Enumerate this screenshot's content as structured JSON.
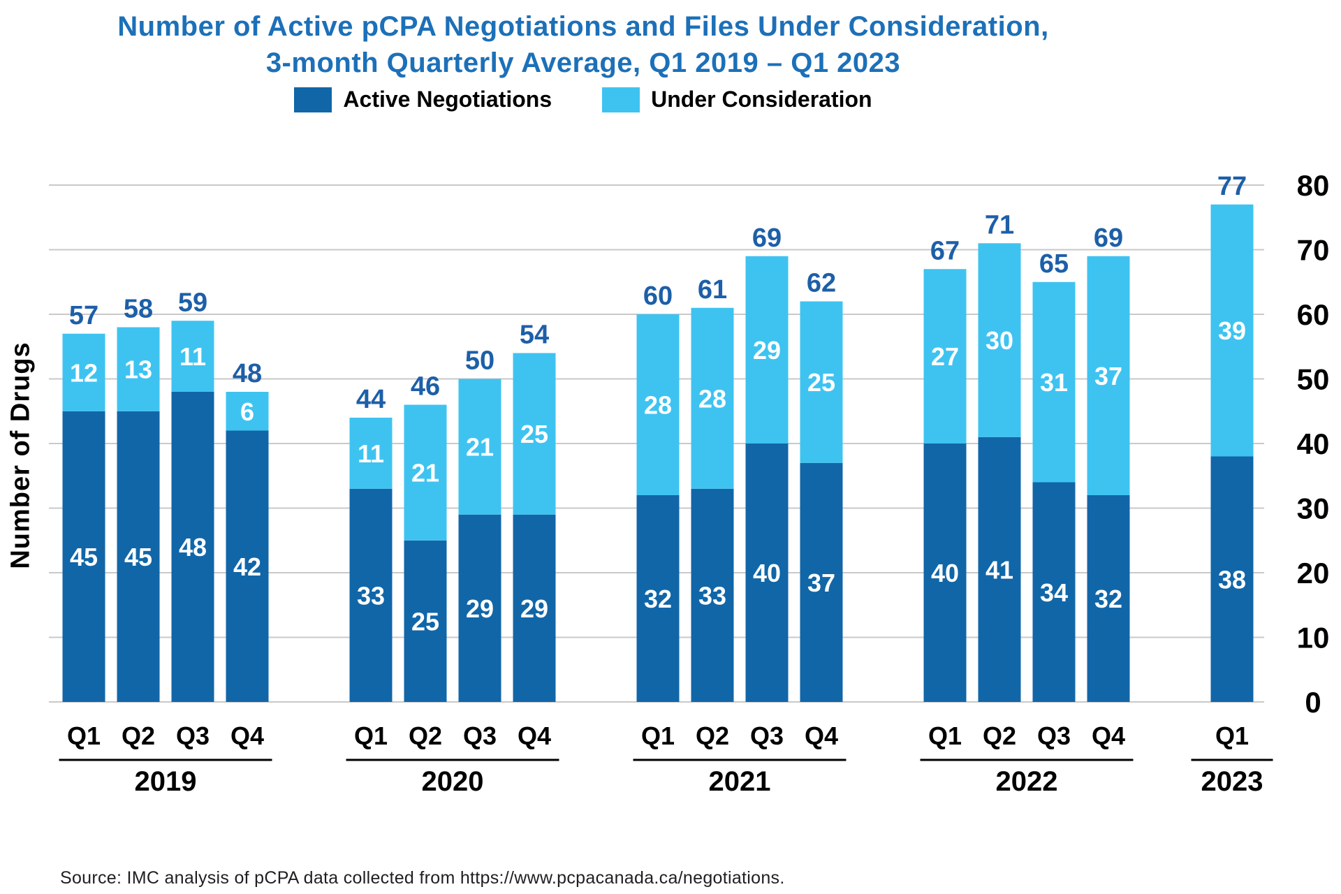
{
  "title": {
    "line1": "Number of Active pCPA Negotiations and Files Under Consideration,",
    "line2": "3-month Quarterly Average, Q1 2019 – Q1 2023",
    "color": "#1C70B8"
  },
  "source": "Source: IMC analysis of pCPA data collected from https://www.pcpacanada.ca/negotiations.",
  "chart_data": {
    "type": "bar",
    "stacked": true,
    "title": "Number of Active pCPA Negotiations and Files Under Consideration, 3-month Quarterly Average, Q1 2019 – Q1 2023",
    "ylabel": "Number of Drugs",
    "xlabel": "",
    "ylim": [
      0,
      80
    ],
    "yticks": [
      0,
      10,
      20,
      30,
      40,
      50,
      60,
      70,
      80
    ],
    "grid": true,
    "legend_position": "top",
    "gridline_color": "#C9C9C9",
    "value_label_color": "#FFFFFF",
    "total_label_color": "#1D5FA8",
    "axis_text_color": "#000000",
    "series": [
      {
        "name": "Active Negotiations",
        "color": "#1166A8"
      },
      {
        "name": "Under Consideration",
        "color": "#3EC3F1"
      }
    ],
    "groups": [
      {
        "year": "2019",
        "quarters": [
          "Q1",
          "Q2",
          "Q3",
          "Q4"
        ],
        "active": [
          45,
          45,
          48,
          42
        ],
        "under": [
          12,
          13,
          11,
          6
        ],
        "totals": [
          57,
          58,
          59,
          48
        ]
      },
      {
        "year": "2020",
        "quarters": [
          "Q1",
          "Q2",
          "Q3",
          "Q4"
        ],
        "active": [
          33,
          25,
          29,
          29
        ],
        "under": [
          11,
          21,
          21,
          25
        ],
        "totals": [
          44,
          46,
          50,
          54
        ]
      },
      {
        "year": "2021",
        "quarters": [
          "Q1",
          "Q2",
          "Q3",
          "Q4"
        ],
        "active": [
          32,
          33,
          40,
          37
        ],
        "under": [
          28,
          28,
          29,
          25
        ],
        "totals": [
          60,
          61,
          69,
          62
        ]
      },
      {
        "year": "2022",
        "quarters": [
          "Q1",
          "Q2",
          "Q3",
          "Q4"
        ],
        "active": [
          40,
          41,
          34,
          32
        ],
        "under": [
          27,
          30,
          31,
          37
        ],
        "totals": [
          67,
          71,
          65,
          69
        ]
      },
      {
        "year": "2023",
        "quarters": [
          "Q1"
        ],
        "active": [
          38
        ],
        "under": [
          39
        ],
        "totals": [
          77
        ]
      }
    ]
  }
}
